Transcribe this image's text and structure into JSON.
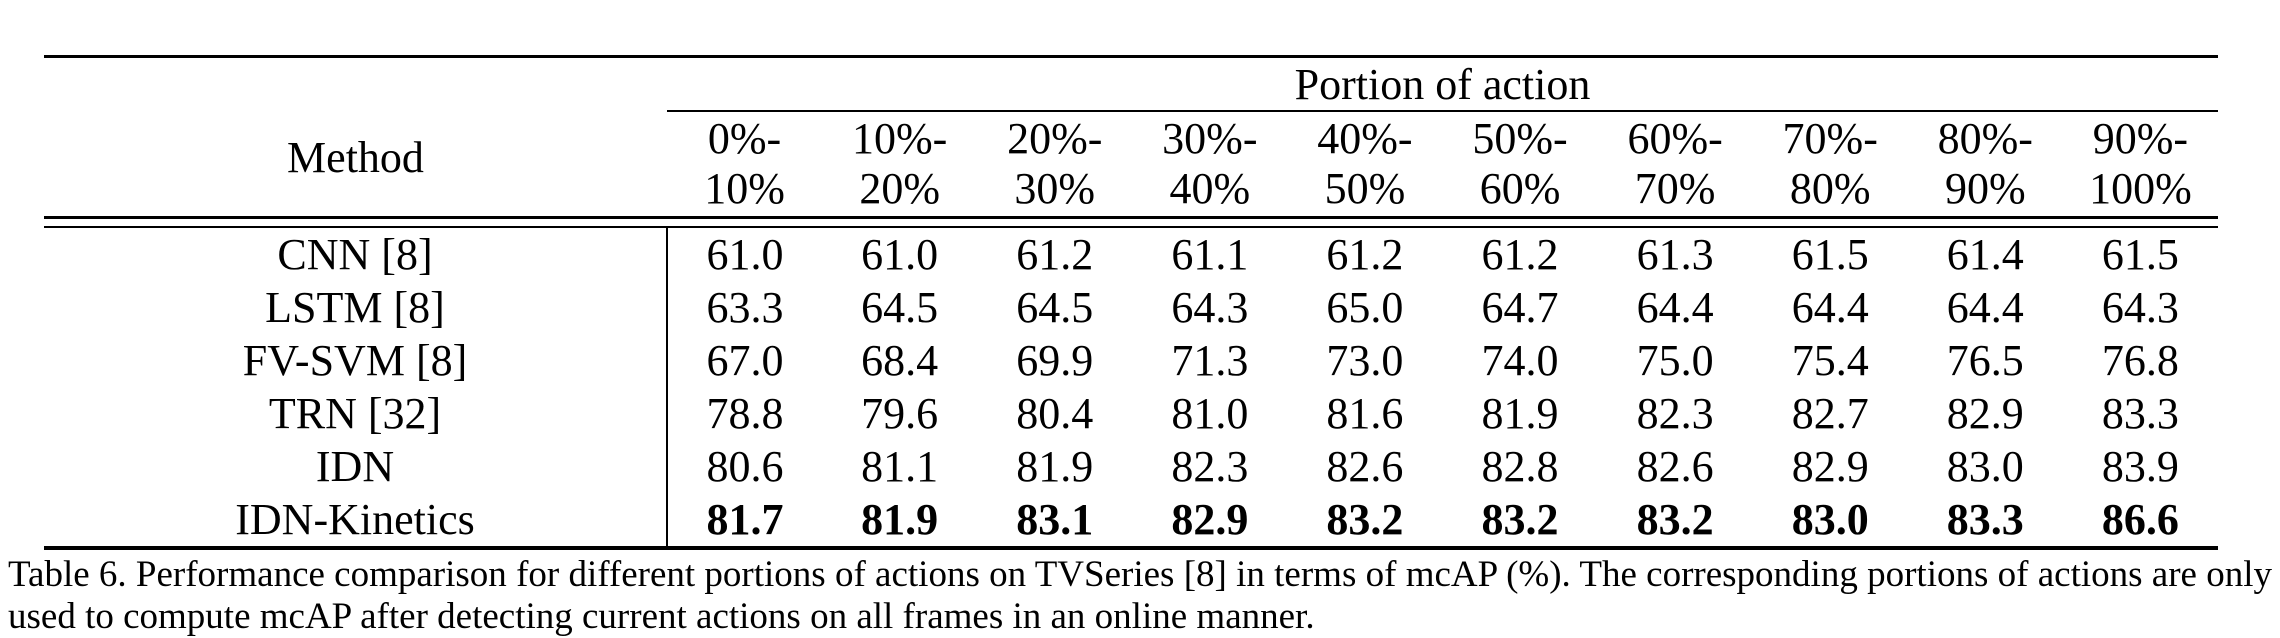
{
  "table": {
    "method_header": "Method",
    "group_header": "Portion of action",
    "columns": [
      {
        "line1": "0%-",
        "line2": "10%"
      },
      {
        "line1": "10%-",
        "line2": "20%"
      },
      {
        "line1": "20%-",
        "line2": "30%"
      },
      {
        "line1": "30%-",
        "line2": "40%"
      },
      {
        "line1": "40%-",
        "line2": "50%"
      },
      {
        "line1": "50%-",
        "line2": "60%"
      },
      {
        "line1": "60%-",
        "line2": "70%"
      },
      {
        "line1": "70%-",
        "line2": "80%"
      },
      {
        "line1": "80%-",
        "line2": "90%"
      },
      {
        "line1": "90%-",
        "line2": "100%"
      }
    ],
    "rows": [
      {
        "method": "CNN [8]",
        "bold": false,
        "values": [
          "61.0",
          "61.0",
          "61.2",
          "61.1",
          "61.2",
          "61.2",
          "61.3",
          "61.5",
          "61.4",
          "61.5"
        ]
      },
      {
        "method": "LSTM [8]",
        "bold": false,
        "values": [
          "63.3",
          "64.5",
          "64.5",
          "64.3",
          "65.0",
          "64.7",
          "64.4",
          "64.4",
          "64.4",
          "64.3"
        ]
      },
      {
        "method": "FV-SVM [8]",
        "bold": false,
        "values": [
          "67.0",
          "68.4",
          "69.9",
          "71.3",
          "73.0",
          "74.0",
          "75.0",
          "75.4",
          "76.5",
          "76.8"
        ]
      },
      {
        "method": "TRN [32]",
        "bold": false,
        "values": [
          "78.8",
          "79.6",
          "80.4",
          "81.0",
          "81.6",
          "81.9",
          "82.3",
          "82.7",
          "82.9",
          "83.3"
        ]
      },
      {
        "method": "IDN",
        "bold": false,
        "values": [
          "80.6",
          "81.1",
          "81.9",
          "82.3",
          "82.6",
          "82.8",
          "82.6",
          "82.9",
          "83.0",
          "83.9"
        ]
      },
      {
        "method": "IDN-Kinetics",
        "bold": true,
        "values": [
          "81.7",
          "81.9",
          "83.1",
          "82.9",
          "83.2",
          "83.2",
          "83.2",
          "83.0",
          "83.3",
          "86.6"
        ]
      }
    ]
  },
  "caption": "Table 6. Performance comparison for different portions of actions on TVSeries [8] in terms of mcAP (%). The corresponding portions of actions are only used to compute mcAP after detecting current actions on all frames in an online manner."
}
